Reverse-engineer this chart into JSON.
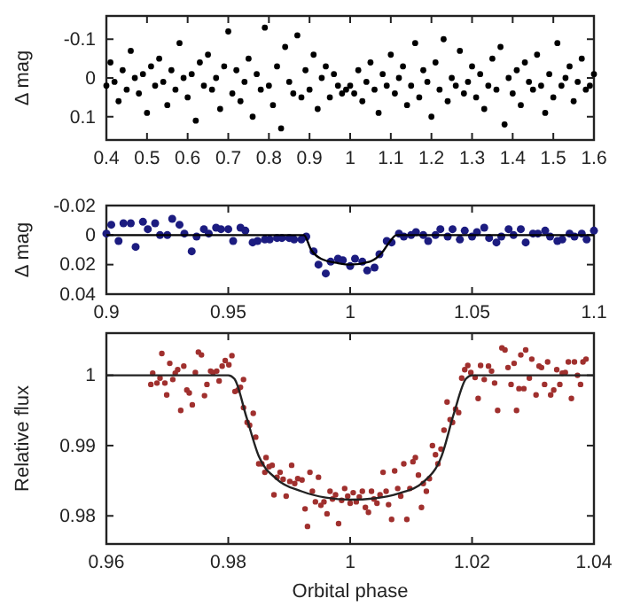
{
  "chart_data": [
    {
      "type": "scatter",
      "ylabel": "Δ mag",
      "xlim": [
        0.4,
        1.6
      ],
      "ylim": [
        0.16,
        -0.16
      ],
      "xticks": [
        0.4,
        0.5,
        0.6,
        0.7,
        0.8,
        0.9,
        1,
        1.1,
        1.2,
        1.3,
        1.4,
        1.5,
        1.6
      ],
      "yticks": [
        -0.1,
        0,
        0.1
      ],
      "series": [
        {
          "marker": "circle",
          "color": "#000000",
          "x": [
            0.4,
            0.41,
            0.42,
            0.43,
            0.44,
            0.45,
            0.46,
            0.47,
            0.48,
            0.49,
            0.5,
            0.51,
            0.52,
            0.53,
            0.54,
            0.55,
            0.56,
            0.57,
            0.58,
            0.59,
            0.6,
            0.61,
            0.62,
            0.63,
            0.64,
            0.65,
            0.66,
            0.67,
            0.68,
            0.69,
            0.7,
            0.71,
            0.72,
            0.73,
            0.74,
            0.75,
            0.76,
            0.77,
            0.78,
            0.79,
            0.8,
            0.81,
            0.82,
            0.83,
            0.84,
            0.85,
            0.86,
            0.87,
            0.88,
            0.89,
            0.9,
            0.91,
            0.92,
            0.93,
            0.94,
            0.95,
            0.96,
            0.97,
            0.98,
            0.99,
            1,
            1.01,
            1.02,
            1.03,
            1.04,
            1.05,
            1.06,
            1.07,
            1.08,
            1.09,
            1.1,
            1.11,
            1.12,
            1.13,
            1.14,
            1.15,
            1.16,
            1.17,
            1.18,
            1.19,
            1.2,
            1.21,
            1.22,
            1.23,
            1.24,
            1.25,
            1.26,
            1.27,
            1.28,
            1.29,
            1.3,
            1.31,
            1.32,
            1.33,
            1.34,
            1.35,
            1.36,
            1.37,
            1.38,
            1.39,
            1.4,
            1.41,
            1.42,
            1.43,
            1.44,
            1.45,
            1.46,
            1.47,
            1.48,
            1.49,
            1.5,
            1.51,
            1.52,
            1.53,
            1.54,
            1.55,
            1.56,
            1.57,
            1.58,
            1.59,
            1.6
          ],
          "values": [
            0.02,
            -0.04,
            0.01,
            0.06,
            -0.02,
            0.03,
            -0.07,
            0.0,
            0.04,
            -0.01,
            0.09,
            -0.03,
            0.02,
            -0.05,
            0.01,
            0.07,
            -0.02,
            0.03,
            -0.09,
            0.0,
            0.05,
            -0.01,
            0.11,
            -0.04,
            0.02,
            -0.06,
            0.03,
            0.0,
            0.08,
            -0.03,
            -0.12,
            0.04,
            -0.02,
            0.06,
            0.01,
            -0.05,
            0.1,
            -0.01,
            0.03,
            -0.13,
            0.02,
            0.07,
            -0.03,
            0.13,
            -0.08,
            0.01,
            0.04,
            -0.11,
            0.05,
            -0.02,
            0.03,
            -0.06,
            0.08,
            0.0,
            -0.03,
            0.05,
            -0.01,
            0.02,
            0.04,
            0.03,
            0.02,
            0.04,
            -0.02,
            0.06,
            0.01,
            -0.04,
            0.03,
            0.09,
            -0.01,
            0.02,
            -0.06,
            0.04,
            0.0,
            -0.03,
            0.07,
            0.02,
            -0.09,
            0.05,
            -0.02,
            0.01,
            0.1,
            -0.04,
            0.03,
            -0.1,
            0.06,
            0.0,
            0.02,
            -0.07,
            0.04,
            0.01,
            -0.03,
            0.05,
            -0.01,
            0.08,
            0.02,
            -0.05,
            0.03,
            -0.08,
            0.12,
            0.0,
            0.04,
            -0.02,
            0.07,
            -0.04,
            0.01,
            0.03,
            -0.06,
            0.02,
            0.09,
            -0.01,
            0.05,
            -0.09,
            0.02,
            0.0,
            -0.03,
            0.06,
            0.01,
            -0.05,
            0.03,
            0.02,
            -0.01
          ]
        }
      ]
    },
    {
      "type": "scatter",
      "ylabel": "Δ mag",
      "xlim": [
        0.9,
        1.1
      ],
      "ylim": [
        0.04,
        -0.02
      ],
      "xticks": [
        0.9,
        0.95,
        1,
        1.05,
        1.1
      ],
      "yticks": [
        -0.02,
        0,
        0.02,
        0.04
      ],
      "series": [
        {
          "marker": "circle",
          "color": "#1c1c80",
          "x": [
            0.9,
            0.902,
            0.905,
            0.907,
            0.91,
            0.912,
            0.915,
            0.917,
            0.92,
            0.922,
            0.925,
            0.927,
            0.93,
            0.932,
            0.935,
            0.937,
            0.94,
            0.942,
            0.945,
            0.947,
            0.95,
            0.952,
            0.955,
            0.957,
            0.96,
            0.962,
            0.965,
            0.967,
            0.97,
            0.972,
            0.975,
            0.977,
            0.98,
            0.982,
            0.985,
            0.987,
            0.99,
            0.992,
            0.995,
            0.997,
            1,
            1.002,
            1.005,
            1.007,
            1.01,
            1.012,
            1.015,
            1.017,
            1.02,
            1.022,
            1.025,
            1.027,
            1.03,
            1.032,
            1.035,
            1.037,
            1.04,
            1.042,
            1.045,
            1.047,
            1.05,
            1.052,
            1.055,
            1.057,
            1.06,
            1.062,
            1.065,
            1.067,
            1.07,
            1.072,
            1.075,
            1.077,
            1.08,
            1.082,
            1.085,
            1.087,
            1.09,
            1.092,
            1.095,
            1.097,
            1.1
          ],
          "values": [
            -0.001,
            -0.007,
            0.004,
            -0.008,
            -0.008,
            0.008,
            -0.009,
            -0.004,
            -0.008,
            0,
            0,
            -0.011,
            -0.007,
            -0.001,
            0.011,
            0.001,
            -0.004,
            -0.001,
            -0.005,
            -0.004,
            -0.004,
            0.004,
            -0.005,
            -0.003,
            0.005,
            0.004,
            0.003,
            0.003,
            0.002,
            0.002,
            0.002,
            0.003,
            0.003,
            0.001,
            0.011,
            0.02,
            0.026,
            0.018,
            0.016,
            0.017,
            0.021,
            0.016,
            0.018,
            0.024,
            0.022,
            0.013,
            0.004,
            0.005,
            -0.001,
            0.001,
            0,
            -0.002,
            0,
            0.004,
            0,
            -0.004,
            0.001,
            -0.004,
            0.003,
            -0.003,
            0.001,
            -0.002,
            -0.005,
            0.002,
            0.005,
            0.001,
            -0.004,
            0,
            -0.004,
            0.005,
            -0.001,
            -0.001,
            -0.003,
            0.001,
            0.004,
            0.003,
            -0.001,
            0.001,
            -0.001,
            0.003,
            -0.003
          ]
        },
        {
          "type": "line",
          "marker": "none",
          "color": "#000000",
          "x": [
            0.9,
            0.981,
            0.984,
            0.988,
            0.995,
            1,
            1.008,
            1.013,
            1.016,
            1.019,
            1.1
          ],
          "values": [
            0,
            0,
            0.01,
            0.016,
            0.019,
            0.02,
            0.018,
            0.012,
            0.005,
            0,
            0
          ]
        }
      ]
    },
    {
      "type": "scatter",
      "xlabel": "Orbital phase",
      "ylabel": "Relative flux",
      "xlim": [
        0.96,
        1.04
      ],
      "ylim": [
        0.976,
        1.006
      ],
      "xticks": [
        0.96,
        0.98,
        1,
        1.02,
        1.04
      ],
      "yticks": [
        0.98,
        0.99,
        1
      ],
      "series": [
        {
          "marker": "circle",
          "color": "#a0302e",
          "x": [
            0.9673,
            0.9676,
            0.9683,
            0.9688,
            0.9691,
            0.9696,
            0.9699,
            0.9704,
            0.9709,
            0.9713,
            0.9717,
            0.9722,
            0.9727,
            0.9732,
            0.9736,
            0.9741,
            0.9746,
            0.9751,
            0.9756,
            0.9761,
            0.9765,
            0.9771,
            0.9775,
            0.9781,
            0.9785,
            0.979,
            0.9795,
            0.9801,
            0.9806,
            0.9811,
            0.9816,
            0.982,
            0.9825,
            0.9825,
            0.9831,
            0.9835,
            0.9841,
            0.9845,
            0.985,
            0.9855,
            0.986,
            0.9862,
            0.9867,
            0.9872,
            0.9875,
            0.988,
            0.9885,
            0.989,
            0.9895,
            0.9901,
            0.9904,
            0.9909,
            0.9914,
            0.9921,
            0.9926,
            0.993,
            0.9934,
            0.9938,
            0.9943,
            0.9948,
            0.9952,
            0.9957,
            0.9962,
            0.9967,
            0.9971,
            0.9976,
            0.9981,
            0.9986,
            0.9991,
            0.9996,
            1,
            1.0005,
            1.001,
            1.0015,
            1.002,
            1.0025,
            1.003,
            1.0035,
            1.0039,
            1.0044,
            1.0049,
            1.0054,
            1.0059,
            1.0063,
            1.0068,
            1.0073,
            1.0078,
            1.0083,
            1.0088,
            1.0093,
            1.0098,
            1.0103,
            1.0107,
            1.0112,
            1.0117,
            1.012,
            1.0125,
            1.013,
            1.0135,
            1.014,
            1.0144,
            1.0149,
            1.0154,
            1.0159,
            1.0164,
            1.0168,
            1.0173,
            1.0178,
            1.0183,
            1.0188,
            1.0193,
            1.0198,
            1.0205,
            1.021,
            1.0214,
            1.022,
            1.0227,
            1.0232,
            1.0237,
            1.0242,
            1.0249,
            1.0254,
            1.0259,
            1.0264,
            1.0269,
            1.0273,
            1.0277,
            1.028,
            1.0285,
            1.0288,
            1.0294,
            1.0298,
            1.0305,
            1.031,
            1.0314,
            1.0319,
            1.0324,
            1.0329,
            1.0334,
            1.0339,
            1.0344,
            1.0348,
            1.0353,
            1.0358,
            1.0363,
            1.0368,
            1.0373,
            1.0378,
            1.0382,
            1.0387
          ],
          "values": [
            0.9987,
            1.0003,
            0.9989,
            0.9996,
            1.0031,
            0.9989,
            0.9972,
            1.0017,
            0.9994,
            1.0003,
            1.0008,
            0.995,
            1.0013,
            0.9979,
            0.9975,
            0.9958,
            1.0004,
            1.0033,
            1.0029,
            0.9971,
            0.9987,
            1.0006,
            1.0004,
            1.0006,
            0.9992,
            1.0013,
            1.0021,
            1.0015,
            1.0028,
            0.9977,
            0.9979,
            0.9983,
            0.9994,
            0.9954,
            0.9933,
            0.9929,
            0.9946,
            0.9912,
            0.9874,
            0.9874,
            0.9862,
            0.9883,
            0.987,
            0.9872,
            0.983,
            0.9855,
            0.9862,
            0.9852,
            0.9828,
            0.9849,
            0.9872,
            0.9846,
            0.9853,
            0.9851,
            0.981,
            0.9785,
            0.9862,
            0.9835,
            0.982,
            0.9855,
            0.9815,
            0.982,
            0.9803,
            0.9835,
            0.9824,
            0.983,
            0.9789,
            0.9822,
            0.9839,
            0.9828,
            0.9818,
            0.9833,
            0.982,
            0.9827,
            0.9835,
            0.9812,
            0.9805,
            0.9835,
            0.9824,
            0.9818,
            0.983,
            0.9862,
            0.9835,
            0.9816,
            0.9795,
            0.9864,
            0.9839,
            0.9828,
            0.9874,
            0.9795,
            0.9839,
            0.9877,
            0.9883,
            0.9858,
            0.9812,
            0.9846,
            0.9835,
            0.9853,
            0.99,
            0.9887,
            0.9874,
            0.9895,
            0.9922,
            0.9962,
            0.9937,
            0.9933,
            0.9952,
            0.9947,
            0.9996,
            1.0008,
            1.0014,
            1.0004,
            0.9997,
            0.9967,
            1.0014,
            0.9994,
            1.0013,
            1.0006,
            0.9989,
            0.995,
            1.0039,
            1.0036,
            1.0011,
            0.9987,
            1.0017,
            0.995,
            0.9981,
            1.0029,
            0.9981,
            1.0036,
            0.9996,
            1.0023,
            0.9972,
            1.0013,
            1.0011,
            0.9987,
            1.0019,
            0.9972,
            0.9979,
            1.0008,
            0.9987,
            1.0003,
            1.0004,
            1.0019,
            0.9967,
            1.0019,
            1,
            0.9987,
            1.0019,
            1.0023
          ]
        },
        {
          "type": "line",
          "marker": "none",
          "color": "#222222",
          "x": [
            0.96,
            0.98,
            0.981,
            0.983,
            0.985,
            0.988,
            0.992,
            0.996,
            1,
            1.004,
            1.008,
            1.012,
            1.015,
            1.017,
            1.019,
            1.02,
            1.04
          ],
          "values": [
            1,
            1,
            0.9995,
            0.994,
            0.9885,
            0.9852,
            0.9835,
            0.9826,
            0.9823,
            0.9825,
            0.9832,
            0.9848,
            0.9885,
            0.9945,
            0.9995,
            1,
            1
          ]
        }
      ]
    }
  ]
}
